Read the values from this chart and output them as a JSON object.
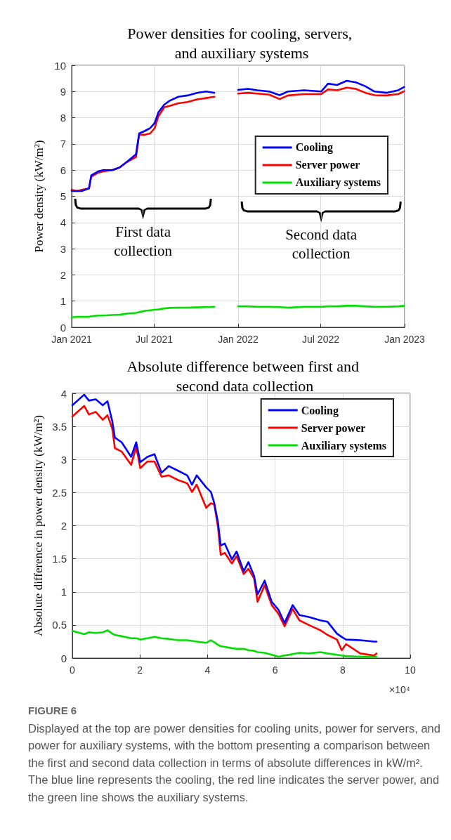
{
  "chart_data": [
    {
      "type": "line",
      "title": "Power densities for cooling, servers, and auxiliary systems",
      "ylabel": "Power density (kW/m²)",
      "x": [
        "2021-01-01",
        "2021-01-13",
        "2021-01-23",
        "2021-02-08",
        "2021-02-13",
        "2021-02-28",
        "2021-03-11",
        "2021-03-31",
        "2021-04-16",
        "2021-05-01",
        "2021-05-22",
        "2021-05-29",
        "2021-06-11",
        "2021-06-22",
        "2021-07-02",
        "2021-07-10",
        "2021-07-23",
        "2021-08-04",
        "2021-08-23",
        "2021-09-12",
        "2021-10-03",
        "2021-10-23",
        "2021-11-10",
        "2021-12-05",
        "2022-01-01",
        "2022-01-23",
        "2022-02-12",
        "2022-03-10",
        "2022-04-02",
        "2022-04-20",
        "2022-05-26",
        "2022-07-02",
        "2022-07-17",
        "2022-08-06",
        "2022-08-27",
        "2022-09-16",
        "2022-10-07",
        "2022-10-27",
        "2022-11-22",
        "2022-12-18",
        "2022-12-31"
      ],
      "series": [
        {
          "name": "Cooling",
          "color": "#0000ff",
          "values": [
            5.2,
            5.2,
            5.2,
            5.3,
            5.8,
            5.95,
            6.0,
            6.0,
            6.1,
            6.3,
            6.6,
            7.4,
            7.5,
            7.6,
            7.8,
            8.2,
            8.5,
            8.65,
            8.8,
            8.85,
            8.95,
            9.0,
            8.95,
            null,
            9.06,
            9.1,
            9.05,
            9.0,
            8.86,
            9.0,
            9.05,
            9.0,
            9.3,
            9.25,
            9.41,
            9.35,
            9.2,
            9.0,
            8.95,
            9.05,
            9.17
          ]
        },
        {
          "name": "Server power",
          "color": "#ff0000",
          "values": [
            5.25,
            5.2,
            5.25,
            5.3,
            5.75,
            5.9,
            5.95,
            6.0,
            6.1,
            6.3,
            6.5,
            7.35,
            7.35,
            7.4,
            7.6,
            8.05,
            8.4,
            8.45,
            8.55,
            8.6,
            8.7,
            8.75,
            8.8,
            null,
            8.92,
            8.95,
            8.92,
            8.88,
            8.71,
            8.85,
            8.9,
            8.9,
            9.08,
            9.05,
            9.15,
            9.1,
            8.95,
            8.86,
            8.85,
            8.9,
            9.01
          ]
        },
        {
          "name": "Auxiliary systems",
          "color": "#00e000",
          "values": [
            0.38,
            0.4,
            0.4,
            0.4,
            0.42,
            0.45,
            0.45,
            0.47,
            0.48,
            0.52,
            0.55,
            0.58,
            0.63,
            0.65,
            0.67,
            0.68,
            0.72,
            0.74,
            0.75,
            0.75,
            0.76,
            0.77,
            0.78,
            null,
            0.8,
            0.8,
            0.78,
            0.78,
            0.77,
            0.75,
            0.78,
            0.78,
            0.8,
            0.8,
            0.82,
            0.82,
            0.8,
            0.78,
            0.78,
            0.8,
            0.82
          ]
        }
      ],
      "xlim": [
        "2021-01-01",
        "2023-01-01"
      ],
      "xticks": [
        {
          "value": "2021-01-01",
          "label": "Jan 2021"
        },
        {
          "value": "2021-07-01",
          "label": "Jul 2021"
        },
        {
          "value": "2022-01-01",
          "label": "Jan 2022"
        },
        {
          "value": "2022-07-01",
          "label": "Jul 2022"
        },
        {
          "value": "2023-01-01",
          "label": "Jan 2023"
        }
      ],
      "ylim": [
        0,
        10
      ],
      "yticks": [
        0,
        1,
        2,
        3,
        4,
        5,
        6,
        7,
        8,
        9,
        10
      ],
      "annotations": [
        "First data collection",
        "Second data collection"
      ],
      "grid": true,
      "legend": "right",
      "marker": "none",
      "line_style": "solid"
    },
    {
      "type": "line",
      "title": "Absolute difference between first and second data collection",
      "ylabel": "Absolute difference in power density (kW/m²)",
      "xlabel": "×10⁴",
      "x": [
        0,
        0.35,
        0.49,
        0.69,
        0.9,
        1.04,
        1.18,
        1.26,
        1.46,
        1.74,
        1.89,
        2.01,
        2.22,
        2.43,
        2.64,
        2.85,
        3.13,
        3.4,
        3.54,
        3.68,
        3.96,
        4.1,
        4.2,
        4.31,
        4.39,
        4.51,
        4.72,
        4.86,
        5.07,
        5.21,
        5.38,
        5.48,
        5.69,
        5.9,
        6.1,
        6.28,
        6.52,
        6.72,
        7.0,
        7.34,
        7.55,
        7.83,
        7.97,
        8.1,
        8.52,
        8.93,
        9.0
      ],
      "series": [
        {
          "name": "Cooling",
          "color": "#0000ff",
          "values": [
            3.82,
            3.98,
            3.89,
            3.91,
            3.82,
            3.88,
            3.58,
            3.33,
            3.26,
            3.04,
            3.26,
            2.96,
            3.04,
            3.08,
            2.8,
            2.9,
            2.83,
            2.76,
            2.62,
            2.76,
            2.58,
            2.51,
            2.34,
            2.05,
            1.7,
            1.73,
            1.49,
            1.61,
            1.31,
            1.45,
            1.24,
            0.96,
            1.17,
            0.85,
            0.73,
            0.53,
            0.8,
            0.65,
            0.62,
            0.57,
            0.55,
            0.37,
            0.32,
            0.28,
            0.27,
            0.25,
            0.25
          ]
        },
        {
          "name": "Server power",
          "color": "#ff0000",
          "values": [
            3.65,
            3.81,
            3.68,
            3.72,
            3.6,
            3.67,
            3.47,
            3.17,
            3.12,
            2.92,
            3.19,
            2.87,
            2.97,
            2.97,
            2.74,
            2.76,
            2.69,
            2.64,
            2.51,
            2.62,
            2.27,
            2.34,
            2.32,
            1.98,
            1.56,
            1.59,
            1.43,
            1.54,
            1.27,
            1.35,
            1.2,
            0.85,
            1.1,
            0.8,
            0.67,
            0.48,
            0.74,
            0.57,
            0.5,
            0.42,
            0.35,
            0.28,
            0.12,
            0.21,
            0.07,
            0.04,
            0.07
          ]
        },
        {
          "name": "Auxiliary systems",
          "color": "#00e000",
          "values": [
            0.41,
            0.36,
            0.39,
            0.38,
            0.39,
            0.42,
            0.37,
            0.35,
            0.33,
            0.3,
            0.3,
            0.28,
            0.3,
            0.32,
            0.3,
            0.29,
            0.27,
            0.27,
            0.26,
            0.25,
            0.23,
            0.27,
            0.24,
            0.2,
            0.18,
            0.17,
            0.15,
            0.14,
            0.14,
            0.12,
            0.11,
            0.09,
            0.08,
            0.05,
            0.02,
            0.04,
            0.06,
            0.08,
            0.07,
            0.09,
            0.07,
            0.05,
            0.04,
            0.03,
            0.02,
            0.02,
            0.02
          ]
        }
      ],
      "xlim": [
        0,
        10
      ],
      "xticks": [
        0,
        2,
        4,
        6,
        8,
        10
      ],
      "ylim": [
        0,
        4
      ],
      "yticks": [
        0,
        0.5,
        1,
        1.5,
        2,
        2.5,
        3,
        3.5,
        4
      ],
      "annotations": [
        "FIGURE 6",
        "Displayed at the top are power densities for cooling units, power for servers, and power for auxiliary systems, with the bottom presenting a comparison between the first and second data collection in terms of absolute differences in kW/m². The blue line represents the cooling, the red line indicates the server power, and the green line shows the auxiliary systems."
      ],
      "grid": true,
      "legend": "top right",
      "marker": "none",
      "line_style": "solid"
    }
  ]
}
